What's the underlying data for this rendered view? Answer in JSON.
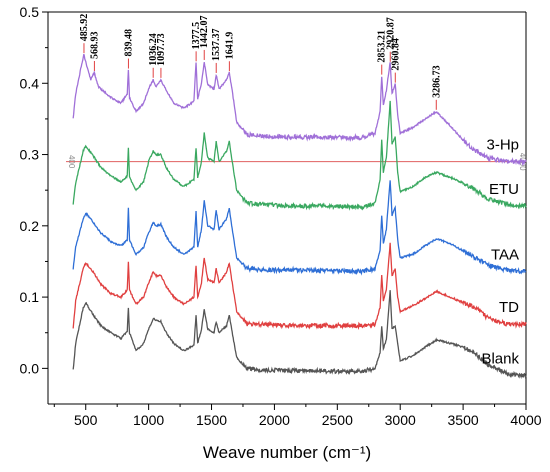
{
  "chart_data": {
    "type": "line",
    "title": "",
    "xlabel": "Weave number (cm⁻¹)",
    "ylabel": "",
    "xlim": [
      200,
      4000
    ],
    "ylim": [
      -0.05,
      0.5
    ],
    "x_ticks": [
      500,
      1000,
      1500,
      2000,
      2500,
      3000,
      3500,
      4000
    ],
    "y_ticks": [
      0.0,
      0.1,
      0.2,
      0.3,
      0.4,
      0.5
    ],
    "x_tick_labels": [
      "500",
      "1000",
      "1500",
      "2000",
      "2500",
      "3000",
      "3500",
      "4000"
    ],
    "y_tick_labels": [
      "0.0",
      "0.1",
      "0.2",
      "0.3",
      "0.4",
      "0.5"
    ],
    "grid": false,
    "legend": "inline labels at right end of each curve",
    "reference_line": {
      "y": 0.29,
      "color": "#e06060",
      "left_label": "400",
      "right_label": "4000"
    },
    "series": [
      {
        "name": "Blank",
        "color": "#555555",
        "points": [
          [
            400,
            -0.002
          ],
          [
            420,
            0.035
          ],
          [
            480,
            0.085
          ],
          [
            500,
            0.092
          ],
          [
            560,
            0.075
          ],
          [
            620,
            0.06
          ],
          [
            700,
            0.05
          ],
          [
            780,
            0.042
          ],
          [
            830,
            0.052
          ],
          [
            839,
            0.085
          ],
          [
            848,
            0.05
          ],
          [
            900,
            0.025
          ],
          [
            960,
            0.035
          ],
          [
            1000,
            0.055
          ],
          [
            1036,
            0.07
          ],
          [
            1060,
            0.068
          ],
          [
            1097,
            0.066
          ],
          [
            1140,
            0.05
          ],
          [
            1200,
            0.035
          ],
          [
            1280,
            0.025
          ],
          [
            1360,
            0.032
          ],
          [
            1377,
            0.075
          ],
          [
            1390,
            0.035
          ],
          [
            1420,
            0.055
          ],
          [
            1442,
            0.082
          ],
          [
            1470,
            0.055
          ],
          [
            1520,
            0.05
          ],
          [
            1537,
            0.065
          ],
          [
            1560,
            0.05
          ],
          [
            1620,
            0.06
          ],
          [
            1641,
            0.075
          ],
          [
            1660,
            0.055
          ],
          [
            1700,
            0.015
          ],
          [
            1780,
            0.0
          ],
          [
            1900,
            -0.002
          ],
          [
            2100,
            -0.003
          ],
          [
            2400,
            -0.004
          ],
          [
            2700,
            -0.004
          ],
          [
            2800,
            0.0
          ],
          [
            2840,
            0.022
          ],
          [
            2853,
            0.06
          ],
          [
            2866,
            0.028
          ],
          [
            2890,
            0.04
          ],
          [
            2920,
            0.11
          ],
          [
            2935,
            0.055
          ],
          [
            2960,
            0.06
          ],
          [
            2980,
            0.035
          ],
          [
            3000,
            0.01
          ],
          [
            3100,
            0.018
          ],
          [
            3200,
            0.03
          ],
          [
            3290,
            0.04
          ],
          [
            3400,
            0.035
          ],
          [
            3500,
            0.03
          ],
          [
            3600,
            0.02
          ],
          [
            3700,
            0.005
          ],
          [
            3850,
            -0.008
          ],
          [
            4000,
            -0.01
          ]
        ]
      },
      {
        "name": "TD",
        "color": "#e04040",
        "points": [
          [
            400,
            0.055
          ],
          [
            420,
            0.095
          ],
          [
            480,
            0.14
          ],
          [
            500,
            0.148
          ],
          [
            560,
            0.135
          ],
          [
            620,
            0.118
          ],
          [
            700,
            0.105
          ],
          [
            780,
            0.1
          ],
          [
            830,
            0.11
          ],
          [
            839,
            0.15
          ],
          [
            848,
            0.11
          ],
          [
            900,
            0.09
          ],
          [
            960,
            0.1
          ],
          [
            1000,
            0.12
          ],
          [
            1036,
            0.135
          ],
          [
            1060,
            0.13
          ],
          [
            1097,
            0.13
          ],
          [
            1140,
            0.115
          ],
          [
            1200,
            0.1
          ],
          [
            1280,
            0.09
          ],
          [
            1360,
            0.1
          ],
          [
            1377,
            0.145
          ],
          [
            1390,
            0.1
          ],
          [
            1420,
            0.12
          ],
          [
            1442,
            0.155
          ],
          [
            1470,
            0.125
          ],
          [
            1520,
            0.12
          ],
          [
            1537,
            0.14
          ],
          [
            1560,
            0.12
          ],
          [
            1620,
            0.135
          ],
          [
            1641,
            0.148
          ],
          [
            1660,
            0.125
          ],
          [
            1700,
            0.08
          ],
          [
            1780,
            0.062
          ],
          [
            1900,
            0.062
          ],
          [
            2100,
            0.06
          ],
          [
            2400,
            0.06
          ],
          [
            2700,
            0.06
          ],
          [
            2800,
            0.062
          ],
          [
            2840,
            0.085
          ],
          [
            2853,
            0.13
          ],
          [
            2866,
            0.095
          ],
          [
            2890,
            0.11
          ],
          [
            2920,
            0.175
          ],
          [
            2935,
            0.13
          ],
          [
            2960,
            0.14
          ],
          [
            2980,
            0.1
          ],
          [
            3000,
            0.08
          ],
          [
            3100,
            0.088
          ],
          [
            3200,
            0.098
          ],
          [
            3290,
            0.108
          ],
          [
            3400,
            0.1
          ],
          [
            3500,
            0.092
          ],
          [
            3600,
            0.085
          ],
          [
            3700,
            0.07
          ],
          [
            3850,
            0.062
          ],
          [
            4000,
            0.062
          ]
        ]
      },
      {
        "name": "TAA",
        "color": "#2f6fd6",
        "points": [
          [
            400,
            0.14
          ],
          [
            420,
            0.17
          ],
          [
            480,
            0.21
          ],
          [
            500,
            0.218
          ],
          [
            560,
            0.205
          ],
          [
            620,
            0.19
          ],
          [
            700,
            0.178
          ],
          [
            780,
            0.172
          ],
          [
            830,
            0.18
          ],
          [
            839,
            0.225
          ],
          [
            848,
            0.18
          ],
          [
            900,
            0.16
          ],
          [
            960,
            0.17
          ],
          [
            1000,
            0.19
          ],
          [
            1036,
            0.205
          ],
          [
            1060,
            0.2
          ],
          [
            1097,
            0.202
          ],
          [
            1140,
            0.185
          ],
          [
            1200,
            0.17
          ],
          [
            1280,
            0.16
          ],
          [
            1360,
            0.17
          ],
          [
            1377,
            0.22
          ],
          [
            1390,
            0.17
          ],
          [
            1420,
            0.195
          ],
          [
            1442,
            0.235
          ],
          [
            1470,
            0.2
          ],
          [
            1520,
            0.195
          ],
          [
            1537,
            0.222
          ],
          [
            1560,
            0.195
          ],
          [
            1620,
            0.21
          ],
          [
            1641,
            0.225
          ],
          [
            1660,
            0.2
          ],
          [
            1700,
            0.155
          ],
          [
            1780,
            0.14
          ],
          [
            1900,
            0.138
          ],
          [
            2100,
            0.138
          ],
          [
            2400,
            0.137
          ],
          [
            2700,
            0.136
          ],
          [
            2800,
            0.14
          ],
          [
            2840,
            0.165
          ],
          [
            2853,
            0.215
          ],
          [
            2866,
            0.175
          ],
          [
            2890,
            0.195
          ],
          [
            2920,
            0.265
          ],
          [
            2935,
            0.215
          ],
          [
            2960,
            0.225
          ],
          [
            2980,
            0.18
          ],
          [
            3000,
            0.155
          ],
          [
            3100,
            0.16
          ],
          [
            3200,
            0.172
          ],
          [
            3290,
            0.182
          ],
          [
            3400,
            0.175
          ],
          [
            3500,
            0.165
          ],
          [
            3600,
            0.155
          ],
          [
            3700,
            0.145
          ],
          [
            3850,
            0.138
          ],
          [
            4000,
            0.136
          ]
        ]
      },
      {
        "name": "ETU",
        "color": "#3aa860",
        "points": [
          [
            400,
            0.23
          ],
          [
            420,
            0.26
          ],
          [
            480,
            0.305
          ],
          [
            500,
            0.312
          ],
          [
            560,
            0.298
          ],
          [
            620,
            0.282
          ],
          [
            700,
            0.27
          ],
          [
            780,
            0.262
          ],
          [
            830,
            0.27
          ],
          [
            839,
            0.31
          ],
          [
            848,
            0.268
          ],
          [
            900,
            0.25
          ],
          [
            960,
            0.262
          ],
          [
            1000,
            0.29
          ],
          [
            1036,
            0.305
          ],
          [
            1060,
            0.3
          ],
          [
            1097,
            0.3
          ],
          [
            1140,
            0.282
          ],
          [
            1200,
            0.265
          ],
          [
            1280,
            0.255
          ],
          [
            1360,
            0.265
          ],
          [
            1377,
            0.31
          ],
          [
            1390,
            0.268
          ],
          [
            1420,
            0.29
          ],
          [
            1442,
            0.33
          ],
          [
            1470,
            0.295
          ],
          [
            1520,
            0.29
          ],
          [
            1537,
            0.318
          ],
          [
            1560,
            0.29
          ],
          [
            1620,
            0.305
          ],
          [
            1641,
            0.318
          ],
          [
            1660,
            0.295
          ],
          [
            1700,
            0.25
          ],
          [
            1780,
            0.232
          ],
          [
            1900,
            0.23
          ],
          [
            2100,
            0.228
          ],
          [
            2400,
            0.228
          ],
          [
            2700,
            0.226
          ],
          [
            2800,
            0.232
          ],
          [
            2840,
            0.265
          ],
          [
            2853,
            0.32
          ],
          [
            2866,
            0.275
          ],
          [
            2890,
            0.295
          ],
          [
            2920,
            0.375
          ],
          [
            2935,
            0.315
          ],
          [
            2960,
            0.325
          ],
          [
            2980,
            0.275
          ],
          [
            3000,
            0.248
          ],
          [
            3100,
            0.255
          ],
          [
            3200,
            0.268
          ],
          [
            3290,
            0.275
          ],
          [
            3400,
            0.268
          ],
          [
            3500,
            0.26
          ],
          [
            3600,
            0.25
          ],
          [
            3700,
            0.238
          ],
          [
            3850,
            0.23
          ],
          [
            4000,
            0.228
          ]
        ]
      },
      {
        "name": "3-Hp",
        "color": "#a070d8",
        "points": [
          [
            400,
            0.35
          ],
          [
            420,
            0.385
          ],
          [
            460,
            0.42
          ],
          [
            485,
            0.44
          ],
          [
            500,
            0.43
          ],
          [
            540,
            0.405
          ],
          [
            568,
            0.415
          ],
          [
            600,
            0.395
          ],
          [
            700,
            0.38
          ],
          [
            780,
            0.372
          ],
          [
            830,
            0.385
          ],
          [
            839,
            0.42
          ],
          [
            848,
            0.38
          ],
          [
            900,
            0.36
          ],
          [
            960,
            0.372
          ],
          [
            1000,
            0.392
          ],
          [
            1036,
            0.405
          ],
          [
            1060,
            0.395
          ],
          [
            1097,
            0.405
          ],
          [
            1140,
            0.39
          ],
          [
            1200,
            0.372
          ],
          [
            1280,
            0.365
          ],
          [
            1360,
            0.375
          ],
          [
            1377,
            0.43
          ],
          [
            1390,
            0.378
          ],
          [
            1420,
            0.4
          ],
          [
            1442,
            0.43
          ],
          [
            1470,
            0.398
          ],
          [
            1520,
            0.392
          ],
          [
            1537,
            0.412
          ],
          [
            1560,
            0.392
          ],
          [
            1620,
            0.405
          ],
          [
            1641,
            0.415
          ],
          [
            1660,
            0.395
          ],
          [
            1700,
            0.345
          ],
          [
            1780,
            0.328
          ],
          [
            1900,
            0.326
          ],
          [
            2100,
            0.325
          ],
          [
            2400,
            0.324
          ],
          [
            2700,
            0.324
          ],
          [
            2800,
            0.33
          ],
          [
            2840,
            0.36
          ],
          [
            2853,
            0.41
          ],
          [
            2866,
            0.37
          ],
          [
            2890,
            0.39
          ],
          [
            2920,
            0.43
          ],
          [
            2935,
            0.385
          ],
          [
            2960,
            0.4
          ],
          [
            2980,
            0.355
          ],
          [
            3000,
            0.33
          ],
          [
            3100,
            0.338
          ],
          [
            3200,
            0.35
          ],
          [
            3287,
            0.36
          ],
          [
            3400,
            0.34
          ],
          [
            3500,
            0.32
          ],
          [
            3600,
            0.305
          ],
          [
            3700,
            0.295
          ],
          [
            3850,
            0.29
          ],
          [
            4000,
            0.29
          ]
        ]
      }
    ],
    "annotations": [
      {
        "label": "485.92",
        "x": 485.92
      },
      {
        "label": "568.93",
        "x": 568.93
      },
      {
        "label": "839.48",
        "x": 839.48
      },
      {
        "label": "1036.24",
        "x": 1036.24
      },
      {
        "label": "1097.73",
        "x": 1097.73
      },
      {
        "label": "1377.5",
        "x": 1377.5
      },
      {
        "label": "1442.07",
        "x": 1442.07
      },
      {
        "label": "1537.37",
        "x": 1537.37
      },
      {
        "label": "1641.9",
        "x": 1641.9
      },
      {
        "label": "2853.21",
        "x": 2853.21
      },
      {
        "label": "2920.87",
        "x": 2920.87
      },
      {
        "label": "2960.84",
        "x": 2960.84
      },
      {
        "label": "3286.73",
        "x": 3286.73
      }
    ]
  }
}
